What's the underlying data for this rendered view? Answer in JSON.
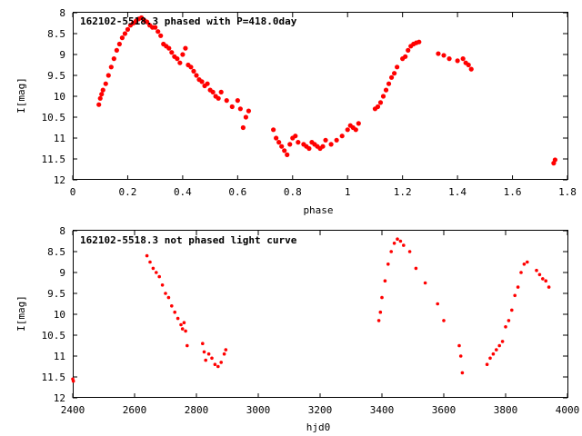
{
  "chart_data": [
    {
      "type": "scatter",
      "title": "162102-5518.3 phased with P=418.0day",
      "xlabel": "phase",
      "ylabel": "I[mag]",
      "xlim": [
        0,
        1.8
      ],
      "ylim": [
        12,
        8
      ],
      "y_inverted": true,
      "xticks": [
        0,
        0.2,
        0.4,
        0.6,
        0.8,
        1,
        1.2,
        1.4,
        1.6,
        1.8
      ],
      "xtick_labels": [
        "0",
        "0.2",
        "0.4",
        "0.6",
        "0.8",
        "1",
        "1.2",
        "1.4",
        "1.6",
        "1.8"
      ],
      "yticks": [
        8,
        8.5,
        9,
        9.5,
        10,
        10.5,
        11,
        11.5,
        12
      ],
      "ytick_labels": [
        "8",
        "8.5",
        "9",
        "9.5",
        "10",
        "10.5",
        "11",
        "11.5",
        "12"
      ],
      "grid": false,
      "marker_color": "#ff0000",
      "series": [
        {
          "x": [
            0.095,
            0.1,
            0.105,
            0.11,
            0.12,
            0.13,
            0.14,
            0.15,
            0.16,
            0.17,
            0.18,
            0.19,
            0.2,
            0.21,
            0.22,
            0.23,
            0.24,
            0.25,
            0.26,
            0.27,
            0.28,
            0.29,
            0.3,
            0.31,
            0.32,
            0.33,
            0.34,
            0.35,
            0.36,
            0.37,
            0.38,
            0.39,
            0.4,
            0.41,
            0.42,
            0.43,
            0.44,
            0.45,
            0.46,
            0.47,
            0.48,
            0.49,
            0.5,
            0.51,
            0.52,
            0.53,
            0.54,
            0.56,
            0.58,
            0.6,
            0.61,
            0.62,
            0.63,
            0.64,
            0.73,
            0.74,
            0.75,
            0.76,
            0.77,
            0.78,
            0.79,
            0.8,
            0.81,
            0.82,
            0.84,
            0.85,
            0.86,
            0.87,
            0.88,
            0.89,
            0.9,
            0.91,
            0.92,
            0.94,
            0.96,
            0.98,
            1.0,
            1.01,
            1.02,
            1.03,
            1.04,
            1.1,
            1.11,
            1.12,
            1.13,
            1.14,
            1.15,
            1.16,
            1.17,
            1.18,
            1.2,
            1.21,
            1.22,
            1.23,
            1.24,
            1.25,
            1.26,
            1.33,
            1.35,
            1.37,
            1.4,
            1.42,
            1.43,
            1.44,
            1.45,
            1.75,
            1.755
          ],
          "y": [
            10.2,
            10.05,
            9.95,
            9.85,
            9.7,
            9.5,
            9.3,
            9.1,
            8.9,
            8.75,
            8.6,
            8.5,
            8.4,
            8.3,
            8.25,
            8.2,
            8.15,
            8.12,
            8.18,
            8.22,
            8.3,
            8.35,
            8.35,
            8.45,
            8.55,
            8.75,
            8.8,
            8.85,
            8.95,
            9.05,
            9.1,
            9.2,
            9.0,
            8.85,
            9.25,
            9.3,
            9.4,
            9.5,
            9.6,
            9.65,
            9.75,
            9.7,
            9.85,
            9.9,
            10.0,
            10.05,
            9.9,
            10.1,
            10.25,
            10.1,
            10.3,
            10.75,
            10.5,
            10.35,
            10.8,
            11.0,
            11.1,
            11.2,
            11.3,
            11.4,
            11.15,
            11.0,
            10.95,
            11.1,
            11.15,
            11.2,
            11.25,
            11.1,
            11.15,
            11.2,
            11.25,
            11.2,
            11.05,
            11.15,
            11.05,
            10.95,
            10.8,
            10.7,
            10.75,
            10.8,
            10.65,
            10.3,
            10.25,
            10.15,
            10.0,
            9.85,
            9.7,
            9.55,
            9.45,
            9.3,
            9.1,
            9.05,
            8.9,
            8.8,
            8.75,
            8.72,
            8.7,
            8.98,
            9.02,
            9.1,
            9.15,
            9.1,
            9.2,
            9.25,
            9.35,
            11.6,
            11.52
          ]
        }
      ]
    },
    {
      "type": "scatter",
      "title": "162102-5518.3 not phased light curve",
      "xlabel": "hjd0",
      "ylabel": "I[mag]",
      "xlim": [
        2400,
        4000
      ],
      "ylim": [
        12,
        8
      ],
      "y_inverted": true,
      "xticks": [
        2400,
        2600,
        2800,
        3000,
        3200,
        3400,
        3600,
        3800,
        4000
      ],
      "xtick_labels": [
        "2400",
        "2600",
        "2800",
        "3000",
        "3200",
        "3400",
        "3600",
        "3800",
        "4000"
      ],
      "yticks": [
        8,
        8.5,
        9,
        9.5,
        10,
        10.5,
        11,
        11.5,
        12
      ],
      "ytick_labels": [
        "8",
        "8.5",
        "9",
        "9.5",
        "10",
        "10.5",
        "11",
        "11.5",
        "12"
      ],
      "grid": false,
      "marker_color": "#ff0000",
      "series": [
        {
          "x": [
            2400,
            2402,
            2640,
            2650,
            2660,
            2670,
            2680,
            2690,
            2700,
            2710,
            2720,
            2730,
            2740,
            2750,
            2755,
            2760,
            2765,
            2770,
            2820,
            2825,
            2830,
            2840,
            2850,
            2860,
            2870,
            2880,
            2890,
            2895,
            3390,
            3395,
            3400,
            3410,
            3420,
            3430,
            3440,
            3450,
            3460,
            3470,
            3490,
            3510,
            3540,
            3580,
            3600,
            3650,
            3655,
            3660,
            3740,
            3750,
            3760,
            3770,
            3780,
            3790,
            3800,
            3810,
            3820,
            3830,
            3840,
            3850,
            3860,
            3870,
            3900,
            3910,
            3920,
            3930,
            3940
          ],
          "y": [
            11.55,
            11.6,
            8.6,
            8.75,
            8.9,
            9.0,
            9.1,
            9.3,
            9.5,
            9.6,
            9.8,
            9.95,
            10.1,
            10.25,
            10.35,
            10.2,
            10.4,
            10.75,
            10.7,
            10.9,
            11.1,
            10.95,
            11.05,
            11.2,
            11.25,
            11.15,
            10.95,
            10.85,
            10.15,
            9.95,
            9.6,
            9.2,
            8.8,
            8.5,
            8.3,
            8.2,
            8.25,
            8.35,
            8.5,
            8.9,
            9.25,
            9.75,
            10.15,
            10.75,
            11.0,
            11.4,
            11.2,
            11.05,
            10.95,
            10.85,
            10.75,
            10.65,
            10.3,
            10.15,
            9.9,
            9.55,
            9.35,
            9.0,
            8.8,
            8.75,
            8.95,
            9.05,
            9.15,
            9.2,
            9.35
          ]
        }
      ]
    }
  ]
}
